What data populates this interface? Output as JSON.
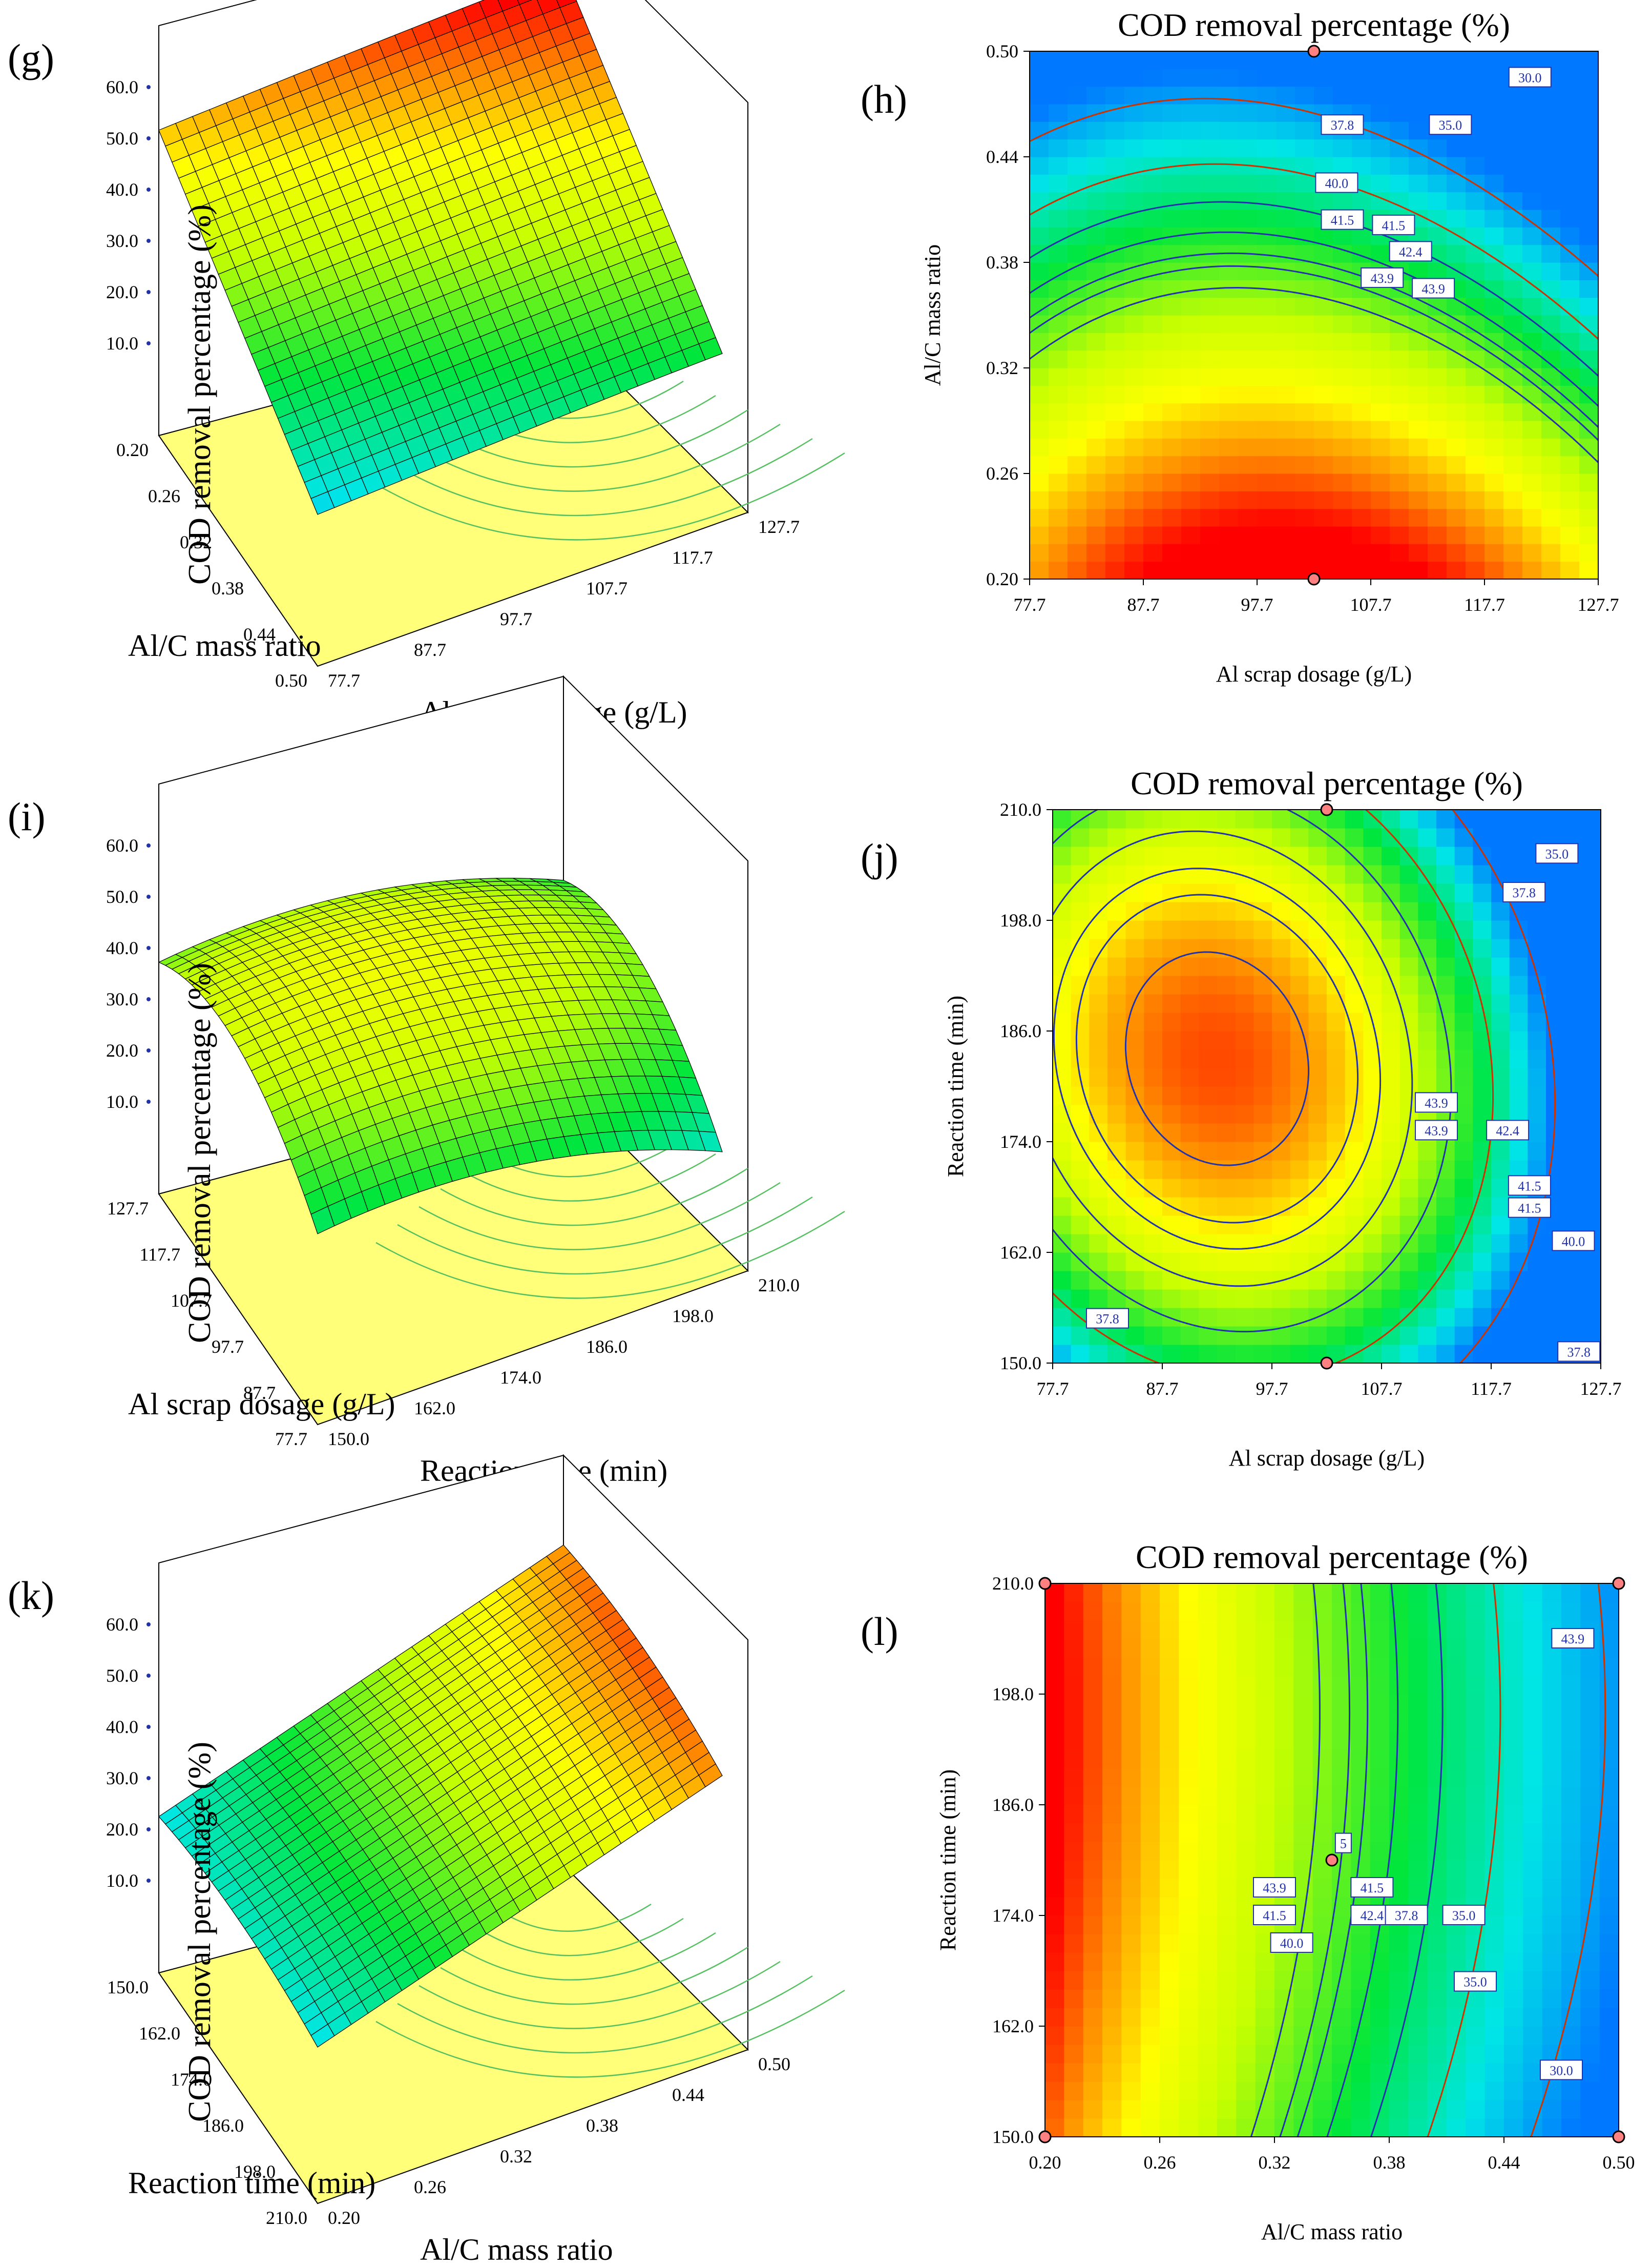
{
  "panels": [
    {
      "id": "g",
      "label": "(g)",
      "kind": "surface3d",
      "zlabel": "COD removal percentage (%)",
      "xlabel": "Al/C mass ratio",
      "ylabel": "Al scrap dosage (g/L)",
      "zticks": [
        "10.0",
        "20.0",
        "30.0",
        "40.0",
        "50.0",
        "60.0"
      ],
      "xticks": [
        "0.20",
        "0.26",
        "0.32",
        "0.38",
        "0.44",
        "0.50"
      ],
      "yticks": [
        "77.7",
        "87.7",
        "97.7",
        "107.7",
        "117.7",
        "127.7"
      ],
      "colors": {
        "high": "#ff0000",
        "mid": "#ffff00",
        "low": "#00e000",
        "base": "#ffff7a"
      }
    },
    {
      "id": "h",
      "label": "(h)",
      "kind": "contour",
      "title": "COD removal percentage (%)",
      "xlabel": "Al scrap dosage (g/L)",
      "ylabel": "Al/C mass ratio",
      "xticks": [
        "77.7",
        "87.7",
        "97.7",
        "107.7",
        "117.7",
        "127.7"
      ],
      "yticks": [
        "0.20",
        "0.26",
        "0.32",
        "0.38",
        "0.44",
        "0.50"
      ],
      "contour_labels": [
        "30.0",
        "35.0",
        "37.8",
        "40.0",
        "41.5",
        "41.5",
        "42.4",
        "43.9",
        "43.9"
      ]
    },
    {
      "id": "i",
      "label": "(i)",
      "kind": "surface3d",
      "zlabel": "COD removal percentage (%)",
      "xlabel": "Al scrap dosage (g/L)",
      "ylabel": "Reaction time (min)",
      "zticks": [
        "10.0",
        "20.0",
        "30.0",
        "40.0",
        "50.0",
        "60.0"
      ],
      "xticks": [
        "127.7",
        "117.7",
        "107.7",
        "97.7",
        "87.7",
        "77.7"
      ],
      "yticks": [
        "150.0",
        "162.0",
        "174.0",
        "186.0",
        "198.0",
        "210.0"
      ]
    },
    {
      "id": "j",
      "label": "(j)",
      "kind": "contour",
      "title": "COD removal percentage (%)",
      "xlabel": "Al scrap dosage (g/L)",
      "ylabel": "Reaction time (min)",
      "xticks": [
        "77.7",
        "87.7",
        "97.7",
        "107.7",
        "117.7",
        "127.7"
      ],
      "yticks": [
        "150.0",
        "162.0",
        "174.0",
        "186.0",
        "198.0",
        "210.0"
      ],
      "contour_labels": [
        "35.0",
        "37.8",
        "43.9",
        "43.9",
        "42.4",
        "41.5",
        "41.5",
        "40.0",
        "37.8",
        "37.8"
      ]
    },
    {
      "id": "k",
      "label": "(k)",
      "kind": "surface3d",
      "zlabel": "COD removal percentage (%)",
      "xlabel": "Reaction time (min)",
      "ylabel": "Al/C mass ratio",
      "zticks": [
        "10.0",
        "20.0",
        "30.0",
        "40.0",
        "50.0",
        "60.0"
      ],
      "xticks": [
        "150.0",
        "162.0",
        "174.0",
        "186.0",
        "198.0",
        "210.0"
      ],
      "yticks": [
        "0.20",
        "0.26",
        "0.32",
        "0.38",
        "0.44",
        "0.50"
      ]
    },
    {
      "id": "l",
      "label": "(l)",
      "kind": "contour",
      "title": "COD removal percentage (%)",
      "xlabel": "Al/C mass ratio",
      "ylabel": "Reaction time (min)",
      "xticks": [
        "0.20",
        "0.26",
        "0.32",
        "0.38",
        "0.44",
        "0.50"
      ],
      "yticks": [
        "150.0",
        "162.0",
        "174.0",
        "186.0",
        "198.0",
        "210.0"
      ],
      "contour_labels": [
        "43.9",
        "43.9",
        "41.5",
        "41.5",
        "42.4",
        "40.0",
        "37.8",
        "35.0",
        "35.0",
        "30.0",
        "5"
      ]
    }
  ],
  "chart_data": [
    {
      "type": "heatmap",
      "panel": "h",
      "title": "COD removal percentage (%)",
      "xlabel": "Al scrap dosage (g/L)",
      "ylabel": "Al/C mass ratio",
      "xlim": [
        77.7,
        127.7
      ],
      "ylim": [
        0.2,
        0.5
      ],
      "contour_levels": [
        30.0,
        35.0,
        37.8,
        40.0,
        41.5,
        42.4,
        43.9
      ],
      "design_points": [
        {
          "x": 102.7,
          "y": 0.5
        },
        {
          "x": 102.7,
          "y": 0.2
        }
      ]
    },
    {
      "type": "heatmap",
      "panel": "j",
      "title": "COD removal percentage (%)",
      "xlabel": "Al scrap dosage (g/L)",
      "ylabel": "Reaction time (min)",
      "xlim": [
        77.7,
        127.7
      ],
      "ylim": [
        150.0,
        210.0
      ],
      "contour_levels": [
        35.0,
        37.8,
        40.0,
        41.5,
        42.4,
        43.9
      ],
      "design_points": [
        {
          "x": 102.7,
          "y": 210.0
        },
        {
          "x": 102.7,
          "y": 150.0
        }
      ]
    },
    {
      "type": "heatmap",
      "panel": "l",
      "title": "COD removal percentage (%)",
      "xlabel": "Al/C mass ratio",
      "ylabel": "Reaction time (min)",
      "xlim": [
        0.2,
        0.5
      ],
      "ylim": [
        150.0,
        210.0
      ],
      "contour_levels": [
        30.0,
        35.0,
        37.8,
        40.0,
        41.5,
        42.4,
        43.9
      ],
      "design_points": [
        {
          "x": 0.2,
          "y": 210.0
        },
        {
          "x": 0.5,
          "y": 210.0
        },
        {
          "x": 0.2,
          "y": 150.0
        },
        {
          "x": 0.5,
          "y": 150.0
        },
        {
          "x": 0.35,
          "y": 180.0
        }
      ]
    }
  ]
}
